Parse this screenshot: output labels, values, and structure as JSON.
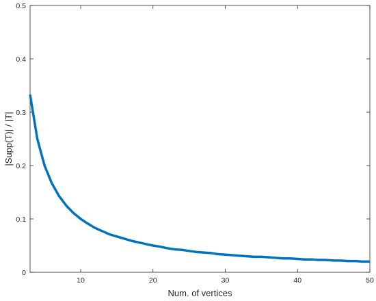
{
  "chart_data": {
    "type": "line",
    "title": "",
    "xlabel": "Num. of vertices",
    "ylabel": "|Supp(T)| / |T|",
    "xlim": [
      3,
      50
    ],
    "ylim": [
      0,
      0.5
    ],
    "x_ticks": [
      10,
      20,
      30,
      40,
      50
    ],
    "x_tick_labels": [
      "10",
      "20",
      "30",
      "40",
      "50"
    ],
    "y_ticks": [
      0,
      0.1,
      0.2,
      0.3,
      0.4,
      0.5
    ],
    "y_tick_labels": [
      "0",
      "0.1",
      "0.2",
      "0.3",
      "0.4",
      "0.5"
    ],
    "grid": false,
    "series": [
      {
        "color": "#0072bd",
        "x": [
          3,
          4,
          5,
          6,
          7,
          8,
          9,
          10,
          11,
          12,
          13,
          14,
          15,
          16,
          17,
          18,
          19,
          20,
          21,
          22,
          23,
          24,
          25,
          26,
          27,
          28,
          29,
          30,
          31,
          32,
          33,
          34,
          35,
          36,
          37,
          38,
          39,
          40,
          41,
          42,
          43,
          44,
          45,
          46,
          47,
          48,
          49,
          50
        ],
        "y": [
          0.333,
          0.25,
          0.2,
          0.167,
          0.143,
          0.125,
          0.111,
          0.1,
          0.091,
          0.083,
          0.077,
          0.071,
          0.067,
          0.063,
          0.059,
          0.056,
          0.053,
          0.05,
          0.048,
          0.045,
          0.043,
          0.042,
          0.04,
          0.038,
          0.037,
          0.036,
          0.034,
          0.033,
          0.032,
          0.031,
          0.03,
          0.029,
          0.029,
          0.028,
          0.027,
          0.026,
          0.026,
          0.025,
          0.024,
          0.024,
          0.023,
          0.023,
          0.022,
          0.022,
          0.021,
          0.021,
          0.02,
          0.02
        ]
      }
    ]
  }
}
